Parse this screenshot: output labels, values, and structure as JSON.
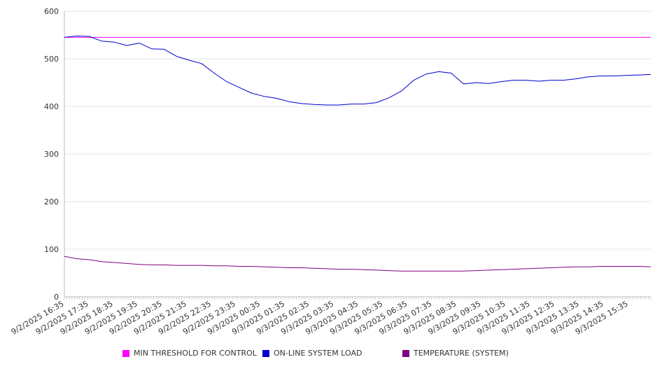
{
  "chart_data": {
    "type": "line",
    "title": "",
    "xlabel": "",
    "ylabel": "",
    "ylim": [
      0,
      600
    ],
    "yticks": [
      0,
      100,
      200,
      300,
      400,
      500,
      600
    ],
    "grid": "horizontal",
    "legend_position": "bottom",
    "x_tick_labels": [
      "9/2/2025 16:35",
      "9/2/2025 17:35",
      "9/2/2025 18:35",
      "9/2/2025 19:35",
      "9/2/2025 20:35",
      "9/2/2025 21:35",
      "9/2/2025 22:35",
      "9/2/2025 23:35",
      "9/3/2025 00:35",
      "9/3/2025 01:35",
      "9/3/2025 02:35",
      "9/3/2025 03:35",
      "9/3/2025 04:35",
      "9/3/2025 05:35",
      "9/3/2025 06:35",
      "9/3/2025 07:35",
      "9/3/2025 08:35",
      "9/3/2025 09:35",
      "9/3/2025 10:35",
      "9/3/2025 11:35",
      "9/3/2025 12:35",
      "9/3/2025 13:35",
      "9/3/2025 14:35",
      "9/3/2025 15:35"
    ],
    "x": [
      "16:35",
      "17:00",
      "17:35",
      "18:00",
      "18:35",
      "19:00",
      "19:35",
      "20:00",
      "20:35",
      "21:00",
      "21:35",
      "22:00",
      "22:35",
      "23:00",
      "23:35",
      "00:00",
      "00:35",
      "01:00",
      "01:35",
      "02:00",
      "02:35",
      "03:00",
      "03:35",
      "04:00",
      "04:35",
      "05:00",
      "05:35",
      "06:00",
      "06:35",
      "07:00",
      "07:35",
      "08:00",
      "08:35",
      "09:00",
      "09:35",
      "10:00",
      "10:35",
      "11:00",
      "11:35",
      "12:00",
      "12:35",
      "13:00",
      "13:35",
      "14:00",
      "14:35",
      "15:00",
      "15:35",
      "16:00"
    ],
    "series": [
      {
        "name": "MIN THRESHOLD FOR CONTROL",
        "color": "#ff00ff",
        "values": [
          545,
          545,
          545,
          545,
          545,
          545,
          545,
          545,
          545,
          545,
          545,
          545,
          545,
          545,
          545,
          545,
          545,
          545,
          545,
          545,
          545,
          545,
          545,
          545,
          545,
          545,
          545,
          545,
          545,
          545,
          545,
          545,
          545,
          545,
          545,
          545,
          545,
          545,
          545,
          545,
          545,
          545,
          545,
          545,
          545,
          545,
          545,
          545
        ]
      },
      {
        "name": "ON-LINE SYSTEM LOAD",
        "color": "#0000cc",
        "values": [
          545,
          548,
          547,
          537,
          535,
          528,
          533,
          521,
          520,
          505,
          497,
          490,
          470,
          452,
          440,
          428,
          421,
          417,
          410,
          406,
          404,
          403,
          403,
          405,
          405,
          408,
          418,
          432,
          455,
          468,
          473,
          470,
          447,
          450,
          448,
          452,
          455,
          455,
          453,
          455,
          455,
          458,
          462,
          464,
          464,
          465,
          466,
          467
        ]
      },
      {
        "name": "TEMPERATURE (SYSTEM)",
        "color": "#800080",
        "values": [
          85,
          80,
          78,
          74,
          72,
          70,
          68,
          67,
          67,
          66,
          66,
          66,
          65,
          65,
          64,
          64,
          63,
          62,
          61,
          61,
          60,
          59,
          58,
          58,
          57,
          56,
          55,
          54,
          54,
          54,
          54,
          54,
          54,
          55,
          56,
          57,
          58,
          59,
          60,
          61,
          62,
          63,
          63,
          64,
          64,
          64,
          64,
          63
        ]
      }
    ]
  }
}
